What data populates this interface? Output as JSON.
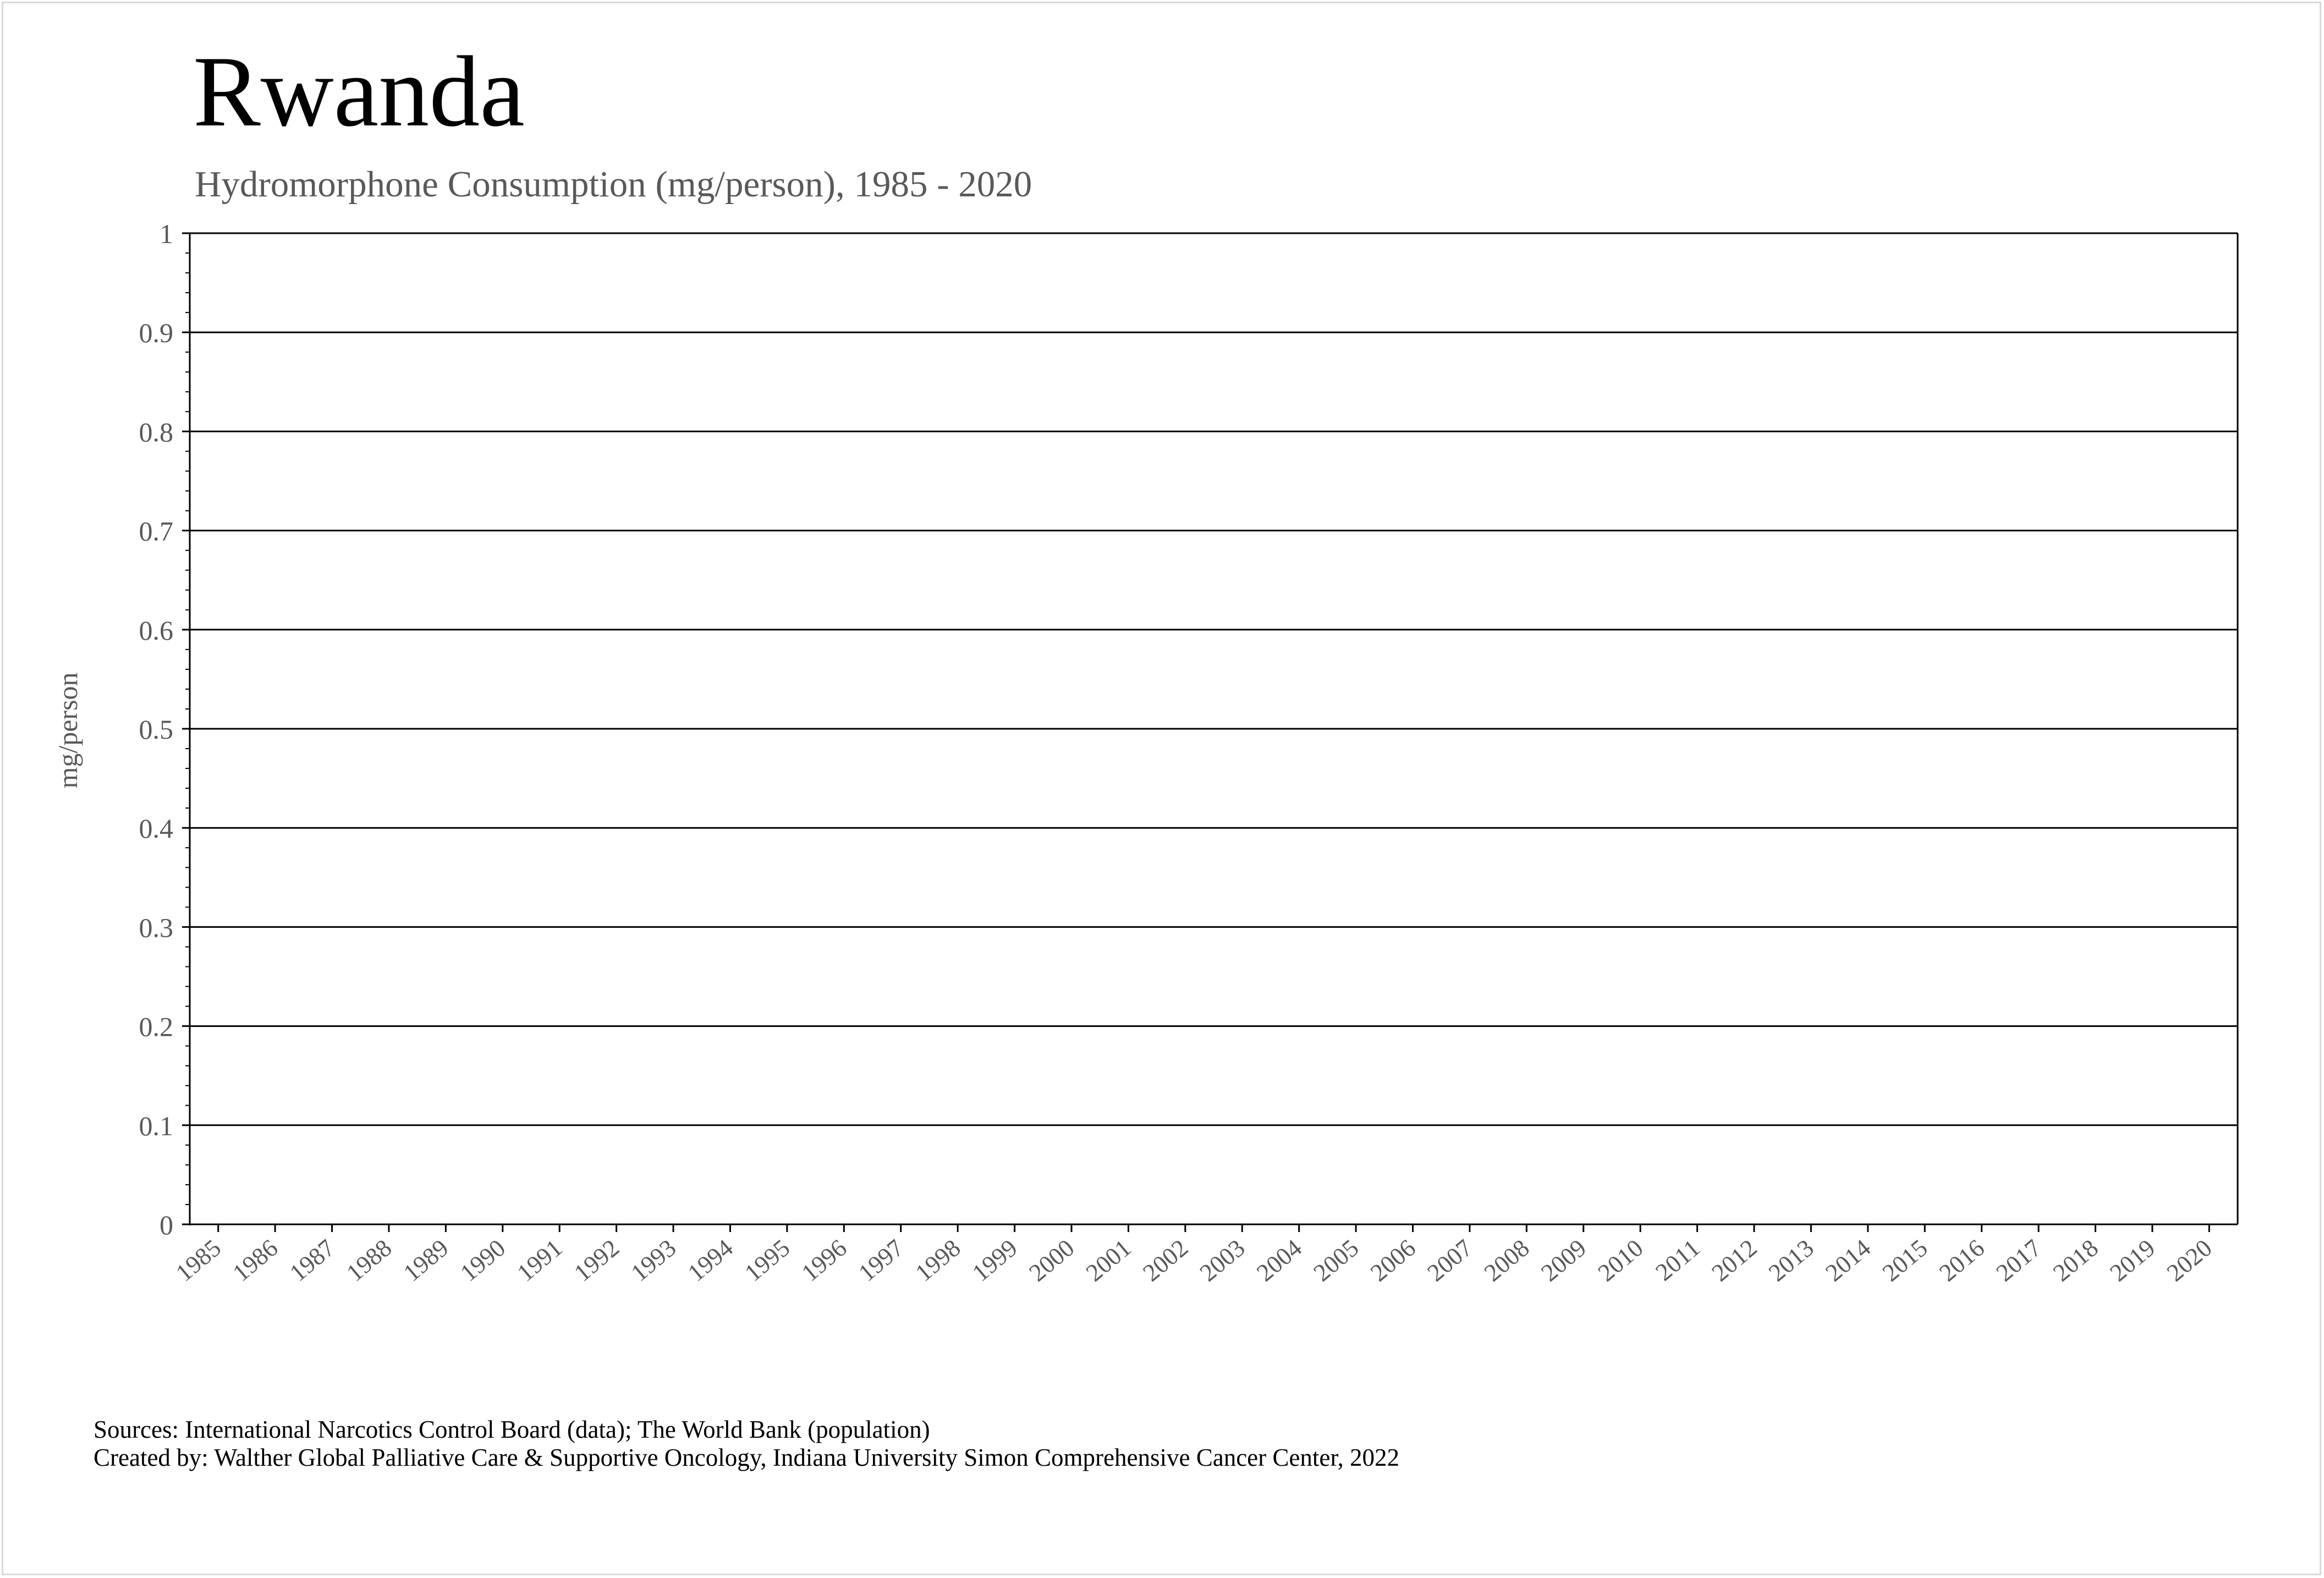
{
  "chart_data": {
    "type": "line",
    "title": "Rwanda",
    "subtitle": "Hydromorphone Consumption (mg/person), 1985 - 2020",
    "xlabel": "",
    "ylabel": "mg/person",
    "categories": [
      "1985",
      "1986",
      "1987",
      "1988",
      "1989",
      "1990",
      "1991",
      "1992",
      "1993",
      "1994",
      "1995",
      "1996",
      "1997",
      "1998",
      "1999",
      "2000",
      "2001",
      "2002",
      "2003",
      "2004",
      "2005",
      "2006",
      "2007",
      "2008",
      "2009",
      "2010",
      "2011",
      "2012",
      "2013",
      "2014",
      "2015",
      "2016",
      "2017",
      "2018",
      "2019",
      "2020"
    ],
    "series": [],
    "ylim": [
      0,
      1
    ],
    "yticks": [
      "0",
      "0.1",
      "0.2",
      "0.3",
      "0.4",
      "0.5",
      "0.6",
      "0.7",
      "0.8",
      "0.9",
      "1"
    ],
    "grid": true,
    "legend": "none"
  },
  "footer": {
    "sources": "Sources: International Narcotics Control Board (data); The World Bank (population)",
    "created": "Created by: Walther Global Palliative Care & Supportive Oncology, Indiana University Simon Comprehensive Cancer Center, 2022"
  },
  "colors": {
    "axis": "#000000",
    "gridline": "#000000",
    "tick_label": "#595959",
    "border": "#d9d9d9"
  }
}
